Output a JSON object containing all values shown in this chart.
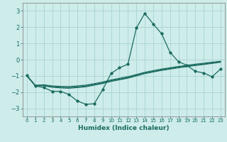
{
  "title": "",
  "xlabel": "Humidex (Indice chaleur)",
  "ylabel": "",
  "background_color": "#cdecea",
  "grid_color": "#a8d4d0",
  "line_color": "#1a6b5e",
  "spine_color": "#888888",
  "xlim": [
    -0.5,
    23.5
  ],
  "ylim": [
    -3.5,
    3.5
  ],
  "yticks": [
    -3,
    -2,
    -1,
    0,
    1,
    2,
    3
  ],
  "xticks": [
    0,
    1,
    2,
    3,
    4,
    5,
    6,
    7,
    8,
    9,
    10,
    11,
    12,
    13,
    14,
    15,
    16,
    17,
    18,
    19,
    20,
    21,
    22,
    23
  ],
  "x": [
    0,
    1,
    2,
    3,
    4,
    5,
    6,
    7,
    8,
    9,
    10,
    11,
    12,
    13,
    14,
    15,
    16,
    17,
    18,
    19,
    20,
    21,
    22,
    23
  ],
  "y_main": [
    -0.95,
    -1.62,
    -1.72,
    -1.95,
    -1.95,
    -2.15,
    -2.55,
    -2.75,
    -2.72,
    -1.85,
    -0.85,
    -0.5,
    -0.28,
    1.95,
    2.85,
    2.2,
    1.6,
    0.45,
    -0.12,
    -0.35,
    -0.72,
    -0.82,
    -1.05,
    -0.58
  ],
  "y_line1": [
    -1.0,
    -1.58,
    -1.55,
    -1.62,
    -1.65,
    -1.66,
    -1.62,
    -1.57,
    -1.48,
    -1.38,
    -1.25,
    -1.15,
    -1.05,
    -0.92,
    -0.78,
    -0.68,
    -0.58,
    -0.5,
    -0.42,
    -0.35,
    -0.28,
    -0.22,
    -0.16,
    -0.1
  ],
  "y_line2": [
    -1.0,
    -1.6,
    -1.58,
    -1.66,
    -1.7,
    -1.72,
    -1.68,
    -1.63,
    -1.53,
    -1.43,
    -1.3,
    -1.2,
    -1.1,
    -0.97,
    -0.83,
    -0.73,
    -0.63,
    -0.55,
    -0.47,
    -0.4,
    -0.33,
    -0.27,
    -0.2,
    -0.13
  ],
  "y_line3": [
    -1.0,
    -1.62,
    -1.61,
    -1.7,
    -1.74,
    -1.76,
    -1.72,
    -1.67,
    -1.57,
    -1.47,
    -1.34,
    -1.24,
    -1.14,
    -1.0,
    -0.86,
    -0.76,
    -0.66,
    -0.58,
    -0.5,
    -0.43,
    -0.36,
    -0.3,
    -0.23,
    -0.16
  ]
}
